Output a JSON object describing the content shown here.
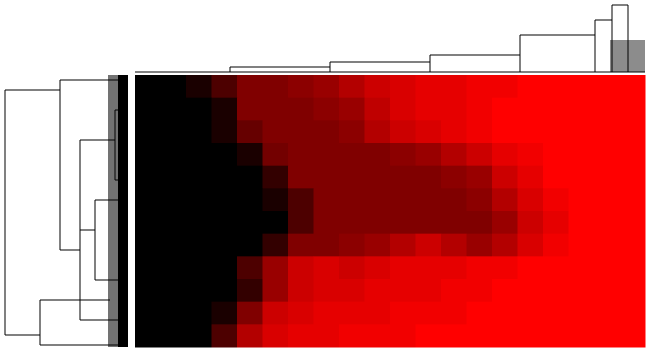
{
  "chart_data": {
    "type": "heatmap",
    "colors": [
      "#000000",
      "#ff0000"
    ],
    "values": [
      [
        0,
        0,
        0.1,
        0.3,
        0.5,
        0.5,
        0.55,
        0.6,
        0.7,
        0.8,
        0.85,
        0.9,
        0.9,
        0.95,
        0.95,
        1,
        1,
        1,
        1,
        1
      ],
      [
        0,
        0,
        0,
        0.1,
        0.5,
        0.5,
        0.5,
        0.55,
        0.6,
        0.75,
        0.85,
        0.9,
        0.9,
        0.95,
        1,
        1,
        1,
        1,
        1,
        1
      ],
      [
        0,
        0,
        0,
        0.1,
        0.4,
        0.5,
        0.5,
        0.5,
        0.55,
        0.7,
        0.8,
        0.85,
        0.9,
        0.95,
        1,
        1,
        1,
        1,
        1,
        1
      ],
      [
        0,
        0,
        0,
        0,
        0.1,
        0.45,
        0.5,
        0.5,
        0.5,
        0.5,
        0.55,
        0.6,
        0.7,
        0.8,
        0.9,
        0.95,
        1,
        1,
        1,
        1
      ],
      [
        0,
        0,
        0,
        0,
        0,
        0.2,
        0.5,
        0.5,
        0.5,
        0.5,
        0.5,
        0.5,
        0.55,
        0.6,
        0.8,
        0.9,
        1,
        1,
        1,
        1
      ],
      [
        0,
        0,
        0,
        0,
        0,
        0.1,
        0.3,
        0.5,
        0.5,
        0.5,
        0.5,
        0.5,
        0.5,
        0.55,
        0.7,
        0.85,
        0.95,
        1,
        1,
        1
      ],
      [
        0,
        0,
        0,
        0,
        0,
        0,
        0.3,
        0.5,
        0.5,
        0.5,
        0.5,
        0.5,
        0.5,
        0.5,
        0.6,
        0.8,
        0.9,
        1,
        1,
        1
      ],
      [
        0,
        0,
        0,
        0,
        0,
        0.2,
        0.5,
        0.5,
        0.55,
        0.6,
        0.7,
        0.8,
        0.7,
        0.6,
        0.7,
        0.85,
        0.95,
        1,
        1,
        1
      ],
      [
        0,
        0,
        0,
        0,
        0.3,
        0.6,
        0.8,
        0.85,
        0.8,
        0.85,
        0.9,
        0.9,
        0.9,
        0.95,
        0.95,
        1,
        1,
        1,
        1,
        1
      ],
      [
        0,
        0,
        0,
        0,
        0.2,
        0.6,
        0.8,
        0.85,
        0.85,
        0.9,
        0.9,
        0.9,
        0.95,
        0.95,
        1,
        1,
        1,
        1,
        1,
        1
      ],
      [
        0,
        0,
        0,
        0.1,
        0.5,
        0.8,
        0.85,
        0.9,
        0.9,
        0.9,
        0.95,
        0.95,
        0.95,
        1,
        1,
        1,
        1,
        1,
        1,
        1
      ],
      [
        0,
        0,
        0,
        0.3,
        0.7,
        0.85,
        0.9,
        0.9,
        0.95,
        0.95,
        0.95,
        1,
        1,
        1,
        1,
        1,
        1,
        1,
        1,
        1
      ]
    ]
  }
}
